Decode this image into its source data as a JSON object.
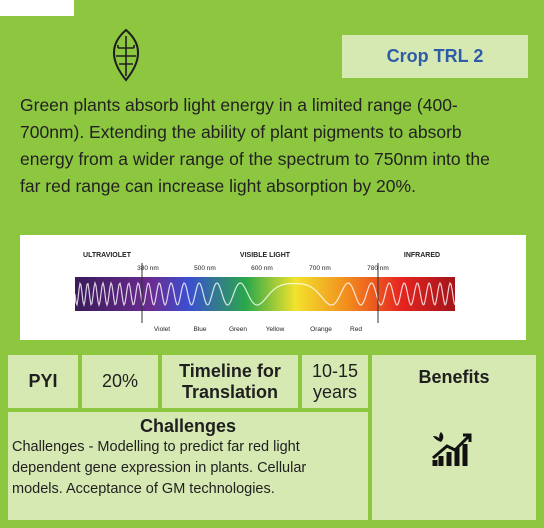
{
  "header": {
    "badge": "Crop TRL 2"
  },
  "description": [
    "Green plants absorb light energy in a limited range (400-",
    "700nm).  Extending the ability of plant pigments to absorb",
    "energy from a wider range of the spectrum to 750nm into the",
    "far red range can increase light absorption by 20%."
  ],
  "spectrum": {
    "regions": [
      "ULTRAVIOLET",
      "VISIBLE LIGHT",
      "INFRARED"
    ],
    "wavelengths": [
      "380 nm",
      "500 nm",
      "600 nm",
      "700 nm",
      "780 nm"
    ],
    "colors": [
      "Violet",
      "Blue",
      "Green",
      "Yellow",
      "Orange",
      "Red"
    ]
  },
  "table": {
    "pyi_label": "PYI",
    "pyi_value": "20%",
    "timeline_label": "Timeline for Translation",
    "timeline_value": "10-15 years",
    "benefits_label": "Benefits",
    "challenges_title": "Challenges",
    "challenges_text": [
      "Challenges - Modelling to predict far red light",
      "dependent gene expression in plants.  Cellular",
      "models. Acceptance of GM technologies."
    ]
  }
}
